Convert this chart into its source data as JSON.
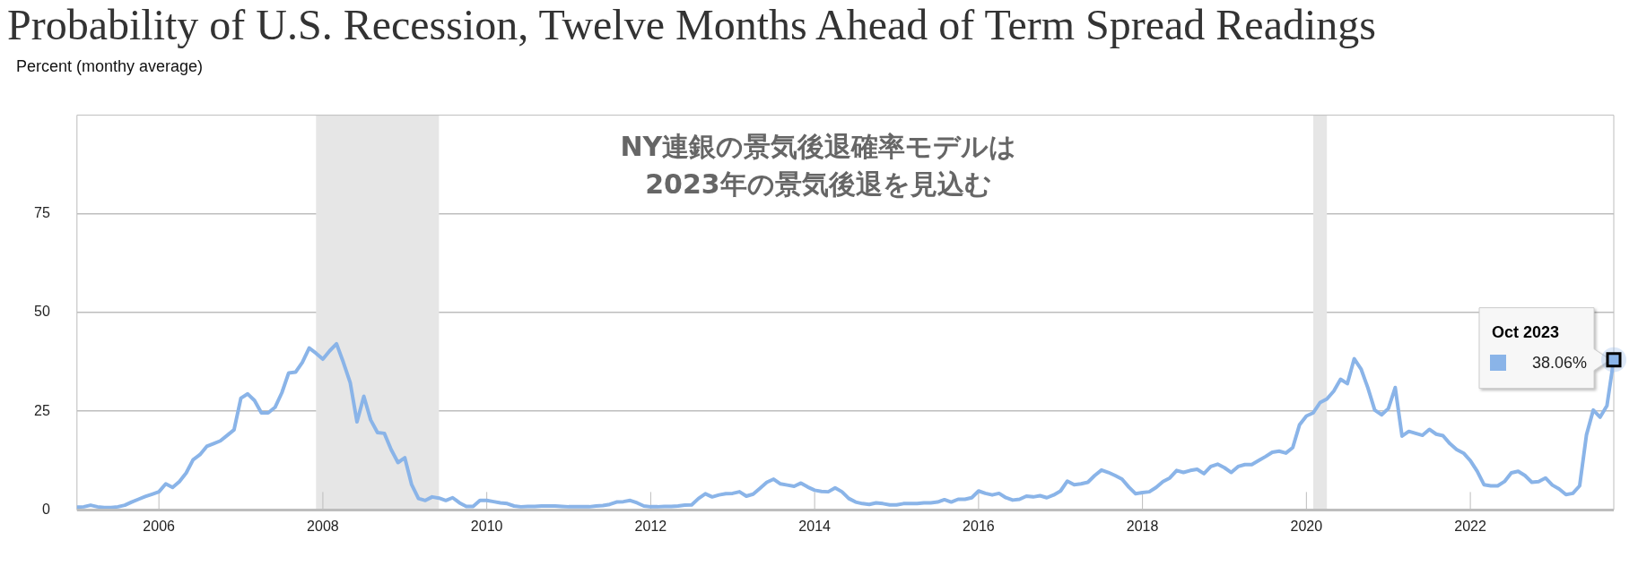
{
  "chart_data": {
    "type": "line",
    "title": "Probability of U.S. Recession, Twelve Months Ahead of Term Spread Readings",
    "ylabel": "Percent (monthy average)",
    "annotations": [
      "NY連銀の景気後退確率モデルは\n2023年の景気後退を見込む",
      "Oct 2023"
    ],
    "x": [
      "2005-01",
      "2005-02",
      "2005-03",
      "2005-04",
      "2005-05",
      "2005-06",
      "2005-07",
      "2005-08",
      "2005-09",
      "2005-10",
      "2005-11",
      "2005-12",
      "2006-01",
      "2006-02",
      "2006-03",
      "2006-04",
      "2006-05",
      "2006-06",
      "2006-07",
      "2006-08",
      "2006-09",
      "2006-10",
      "2006-11",
      "2006-12",
      "2007-01",
      "2007-02",
      "2007-03",
      "2007-04",
      "2007-05",
      "2007-06",
      "2007-07",
      "2007-08",
      "2007-09",
      "2007-10",
      "2007-11",
      "2007-12",
      "2008-01",
      "2008-02",
      "2008-03",
      "2008-04",
      "2008-05",
      "2008-06",
      "2008-07",
      "2008-08",
      "2008-09",
      "2008-10",
      "2008-11",
      "2008-12",
      "2009-01",
      "2009-02",
      "2009-03",
      "2009-04",
      "2009-05",
      "2009-06",
      "2009-07",
      "2009-08",
      "2009-09",
      "2009-10",
      "2009-11",
      "2009-12",
      "2010-01",
      "2010-02",
      "2010-03",
      "2010-04",
      "2010-05",
      "2010-06",
      "2010-07",
      "2010-08",
      "2010-09",
      "2010-10",
      "2010-11",
      "2010-12",
      "2011-01",
      "2011-02",
      "2011-03",
      "2011-04",
      "2011-05",
      "2011-06",
      "2011-07",
      "2011-08",
      "2011-09",
      "2011-10",
      "2011-11",
      "2011-12",
      "2012-01",
      "2012-02",
      "2012-03",
      "2012-04",
      "2012-05",
      "2012-06",
      "2012-07",
      "2012-08",
      "2012-09",
      "2012-10",
      "2012-11",
      "2012-12",
      "2013-01",
      "2013-02",
      "2013-03",
      "2013-04",
      "2013-05",
      "2013-06",
      "2013-07",
      "2013-08",
      "2013-09",
      "2013-10",
      "2013-11",
      "2013-12",
      "2014-01",
      "2014-02",
      "2014-03",
      "2014-04",
      "2014-05",
      "2014-06",
      "2014-07",
      "2014-08",
      "2014-09",
      "2014-10",
      "2014-11",
      "2014-12",
      "2015-01",
      "2015-02",
      "2015-03",
      "2015-04",
      "2015-05",
      "2015-06",
      "2015-07",
      "2015-08",
      "2015-09",
      "2015-10",
      "2015-11",
      "2015-12",
      "2016-01",
      "2016-02",
      "2016-03",
      "2016-04",
      "2016-05",
      "2016-06",
      "2016-07",
      "2016-08",
      "2016-09",
      "2016-10",
      "2016-11",
      "2016-12",
      "2017-01",
      "2017-02",
      "2017-03",
      "2017-04",
      "2017-05",
      "2017-06",
      "2017-07",
      "2017-08",
      "2017-09",
      "2017-10",
      "2017-11",
      "2017-12",
      "2018-01",
      "2018-02",
      "2018-03",
      "2018-04",
      "2018-05",
      "2018-06",
      "2018-07",
      "2018-08",
      "2018-09",
      "2018-10",
      "2018-11",
      "2018-12",
      "2019-01",
      "2019-02",
      "2019-03",
      "2019-04",
      "2019-05",
      "2019-06",
      "2019-07",
      "2019-08",
      "2019-09",
      "2019-10",
      "2019-11",
      "2019-12",
      "2020-01",
      "2020-02",
      "2020-03",
      "2020-04",
      "2020-05",
      "2020-06",
      "2020-07",
      "2020-08",
      "2020-09",
      "2020-10",
      "2020-11",
      "2020-12",
      "2021-01",
      "2021-02",
      "2021-03",
      "2021-04",
      "2021-05",
      "2021-06",
      "2021-07",
      "2021-08",
      "2021-09",
      "2021-10",
      "2021-11",
      "2021-12",
      "2022-01",
      "2022-02",
      "2022-03",
      "2022-04",
      "2022-05",
      "2022-06",
      "2022-07",
      "2022-08",
      "2022-09",
      "2022-10",
      "2022-11",
      "2022-12",
      "2023-01",
      "2023-02",
      "2023-03",
      "2023-04",
      "2023-05",
      "2023-06",
      "2023-07",
      "2023-08",
      "2023-09",
      "2023-10"
    ],
    "series": [
      {
        "color": "#8ab4e8",
        "values": [
          0.7,
          0.8,
          1.2,
          0.8,
          0.6,
          0.6,
          0.8,
          1.2,
          2.0,
          2.7,
          3.4,
          4.0,
          4.6,
          6.6,
          5.7,
          7.2,
          9.4,
          12.7,
          14.0,
          16.1,
          16.8,
          17.5,
          18.9,
          20.3,
          28.3,
          29.4,
          27.7,
          24.6,
          24.6,
          26.0,
          29.7,
          34.7,
          34.9,
          37.4,
          41.0,
          39.7,
          38.2,
          40.3,
          42.1,
          37.4,
          32.3,
          22.3,
          28.8,
          22.8,
          19.6,
          19.4,
          15.3,
          12.0,
          13.2,
          6.4,
          2.9,
          2.4,
          3.3,
          3.0,
          2.4,
          3.1,
          1.8,
          0.9,
          0.9,
          2.4,
          2.4,
          2.1,
          1.8,
          1.6,
          1.0,
          0.8,
          0.9,
          0.9,
          1.0,
          1.0,
          1.0,
          0.9,
          0.8,
          0.8,
          0.8,
          0.8,
          1.0,
          1.1,
          1.4,
          2.0,
          2.1,
          2.4,
          1.8,
          1.0,
          0.8,
          0.8,
          0.9,
          0.9,
          1.0,
          1.2,
          1.3,
          2.9,
          4.1,
          3.3,
          3.8,
          4.1,
          4.2,
          4.6,
          3.5,
          4.0,
          5.5,
          7.0,
          7.8,
          6.6,
          6.3,
          6.0,
          6.8,
          5.8,
          5.0,
          4.7,
          4.6,
          5.6,
          4.6,
          2.9,
          2.0,
          1.6,
          1.4,
          1.8,
          1.6,
          1.3,
          1.3,
          1.6,
          1.6,
          1.6,
          1.8,
          1.8,
          2.0,
          2.6,
          2.0,
          2.7,
          2.7,
          3.1,
          4.8,
          4.2,
          3.8,
          4.2,
          3.1,
          2.5,
          2.7,
          3.5,
          3.3,
          3.6,
          3.1,
          3.8,
          4.8,
          7.3,
          6.4,
          6.6,
          7.0,
          8.7,
          10.1,
          9.5,
          8.7,
          7.8,
          5.8,
          4.1,
          4.4,
          4.6,
          5.7,
          7.2,
          8.1,
          10.0,
          9.5,
          10.0,
          10.3,
          9.2,
          11.0,
          11.6,
          10.7,
          9.5,
          11.0,
          11.5,
          11.5,
          12.5,
          13.5,
          14.6,
          14.9,
          14.4,
          15.8,
          21.6,
          23.8,
          24.6,
          27.2,
          28.1,
          30.1,
          33.1,
          32.0,
          38.3,
          35.7,
          30.9,
          25.3,
          24.1,
          25.7,
          31.0,
          18.7,
          19.9,
          19.4,
          18.9,
          20.4,
          19.2,
          18.8,
          16.8,
          15.3,
          14.4,
          12.5,
          9.8,
          6.4,
          6.1,
          6.1,
          7.2,
          9.4,
          9.8,
          8.7,
          7.0,
          7.2,
          8.1,
          6.3,
          5.3,
          3.9,
          4.2,
          6.1,
          19.0,
          25.3,
          23.5,
          26.4,
          38.06
        ],
        "value_labels": [
          null,
          null,
          null,
          null,
          null,
          null,
          null,
          null,
          null,
          null,
          null,
          null,
          null,
          null,
          null,
          null,
          null,
          null,
          null,
          null,
          null,
          null,
          null,
          null,
          null,
          null,
          null,
          null,
          null,
          null,
          null,
          null,
          null,
          null,
          null,
          null,
          null,
          null,
          null,
          null,
          null,
          null,
          null,
          null,
          null,
          null,
          null,
          null,
          null,
          null,
          null,
          null,
          null,
          null,
          null,
          null,
          null,
          null,
          null,
          null,
          null,
          null,
          null,
          null,
          null,
          null,
          null,
          null,
          null,
          null,
          null,
          null,
          null,
          null,
          null,
          null,
          null,
          null,
          null,
          null,
          null,
          null,
          null,
          null,
          null,
          null,
          null,
          null,
          null,
          null,
          null,
          null,
          null,
          null,
          null,
          null,
          null,
          null,
          null,
          null,
          null,
          null,
          null,
          null,
          null,
          null,
          null,
          null,
          null,
          null,
          null,
          null,
          null,
          null,
          null,
          null,
          null,
          null,
          null,
          null,
          null,
          null,
          null,
          null,
          null,
          null,
          null,
          null,
          null,
          null,
          null,
          null,
          null,
          null,
          null,
          null,
          null,
          null,
          null,
          null,
          null,
          null,
          null,
          null,
          null,
          null,
          null,
          null,
          null,
          null,
          null,
          null,
          null,
          null,
          null,
          null,
          null,
          null,
          null,
          null,
          null,
          null,
          null,
          null,
          null,
          null,
          null,
          null,
          null,
          null,
          null,
          null,
          null,
          null,
          null,
          null,
          null,
          null,
          null,
          null,
          null,
          null,
          null,
          null,
          null,
          null,
          null,
          null,
          null,
          null,
          null,
          null,
          null,
          null,
          null,
          null,
          null,
          null,
          null,
          null,
          null,
          null,
          null,
          null,
          null,
          null,
          null,
          null,
          null,
          null,
          null,
          null,
          null,
          null,
          null,
          null,
          null,
          null,
          null,
          null,
          null,
          null,
          null,
          null,
          null,
          "38.06%"
        ]
      }
    ],
    "bands": [
      {
        "axis": "x",
        "from": "2007-12",
        "to": "2009-06",
        "color": "#e6e6e6"
      },
      {
        "axis": "x",
        "from": "2020-02",
        "to": "2020-04",
        "color": "#e6e6e6"
      }
    ],
    "xlim": [
      "2005-01",
      "2023-10"
    ],
    "xticks": [
      "2006",
      "2008",
      "2010",
      "2012",
      "2014",
      "2016",
      "2018",
      "2020",
      "2022"
    ],
    "ylim": [
      0,
      100
    ],
    "yticks": [
      0,
      25,
      50,
      75
    ],
    "grid": "y",
    "legend": false,
    "marker": "none",
    "line_style": "solid"
  }
}
